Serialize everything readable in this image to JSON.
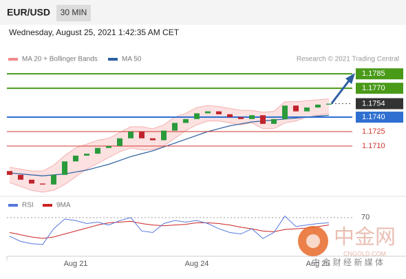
{
  "chart_data": {
    "type": "candlestick",
    "symbol": "EUR/USD",
    "timeframe": "30 MIN",
    "timestamp": "Wednesday, August 25, 2021 1:42:35 AM CET",
    "legend": [
      "MA 20 + Bollinger Bands",
      "MA 50"
    ],
    "legend_colors": [
      "#f08a8a",
      "#2c5fa0"
    ],
    "credit": "Research © 2021 Trading Central",
    "ylim": [
      1.1657,
      1.1793
    ],
    "open": [
      1.1684,
      1.168,
      1.1675,
      1.1671,
      1.167,
      1.168,
      1.1694,
      1.17,
      1.1702,
      1.1708,
      1.171,
      1.1718,
      1.1725,
      1.1718,
      1.1716,
      1.1726,
      1.1734,
      1.1738,
      1.1744,
      1.1746,
      1.1743,
      1.174,
      1.1738,
      1.1742,
      1.1733,
      1.1738,
      1.1752,
      1.1746,
      1.175,
      1.1753
    ],
    "close": [
      1.168,
      1.1675,
      1.1671,
      1.167,
      1.168,
      1.1694,
      1.17,
      1.1702,
      1.1708,
      1.171,
      1.1718,
      1.1725,
      1.1718,
      1.1716,
      1.1726,
      1.1734,
      1.1738,
      1.1744,
      1.1746,
      1.1743,
      1.174,
      1.1738,
      1.1742,
      1.1733,
      1.1738,
      1.1752,
      1.1746,
      1.175,
      1.1753,
      1.1754
    ],
    "ma50": [
      1.1682,
      1.1681,
      1.168,
      1.1679,
      1.168,
      1.1681,
      1.1683,
      1.1685,
      1.1688,
      1.1691,
      1.1695,
      1.1699,
      1.1702,
      1.1705,
      1.1709,
      1.1713,
      1.1717,
      1.1721,
      1.1725,
      1.1728,
      1.1731,
      1.1733,
      1.1735,
      1.1736,
      1.1737,
      1.1738,
      1.1739,
      1.174,
      1.1741,
      1.1742
    ],
    "bb_upper": [
      1.1688,
      1.1686,
      1.1684,
      1.1684,
      1.169,
      1.17,
      1.1708,
      1.1712,
      1.1716,
      1.1718,
      1.1724,
      1.173,
      1.173,
      1.1728,
      1.1732,
      1.174,
      1.1744,
      1.175,
      1.1752,
      1.1751,
      1.1749,
      1.1747,
      1.1747,
      1.1745,
      1.1746,
      1.1756,
      1.1756,
      1.1757,
      1.1758,
      1.1759
    ],
    "bb_lower": [
      1.1672,
      1.1668,
      1.1664,
      1.1662,
      1.1664,
      1.167,
      1.1678,
      1.1686,
      1.1692,
      1.1698,
      1.1704,
      1.1708,
      1.1706,
      1.1706,
      1.171,
      1.1718,
      1.1726,
      1.1732,
      1.1736,
      1.1736,
      1.1734,
      1.1732,
      1.1734,
      1.1728,
      1.1728,
      1.1734,
      1.1736,
      1.174,
      1.1742,
      1.1744
    ],
    "levels": [
      {
        "value": 1.1785,
        "label": "1.1785",
        "color": "#4a9a1a",
        "style": "box"
      },
      {
        "value": 1.177,
        "label": "1.1770",
        "color": "#4a9a1a",
        "style": "box"
      },
      {
        "value": 1.1754,
        "label": "1.1754",
        "color": "#333333",
        "style": "current"
      },
      {
        "value": 1.174,
        "label": "1.1740",
        "color": "#2f6fd0",
        "style": "box"
      },
      {
        "value": 1.1725,
        "label": "1.1725",
        "color": "#d0342c",
        "style": "text"
      },
      {
        "value": 1.171,
        "label": "1.1710",
        "color": "#d0342c",
        "style": "text"
      }
    ],
    "x_labels": [
      {
        "label": "Aug 21",
        "at": 6
      },
      {
        "label": "Aug 24",
        "at": 17
      },
      {
        "label": "Aug 25",
        "at": 28
      }
    ],
    "rsi_legend": [
      "RSI",
      "9MA"
    ],
    "rsi_colors": [
      "#5577dd",
      "#cc2222"
    ],
    "rsi_ylim": [
      20,
      80
    ],
    "rsi_yticks": [
      70
    ],
    "rsi": [
      45,
      38,
      35,
      34,
      55,
      68,
      66,
      62,
      64,
      60,
      66,
      70,
      52,
      50,
      62,
      66,
      64,
      66,
      62,
      55,
      50,
      48,
      55,
      42,
      50,
      72,
      58,
      60,
      62,
      63
    ],
    "rsi_ma": [
      50,
      47,
      44,
      42,
      44,
      48,
      52,
      56,
      60,
      63,
      64,
      65,
      62,
      60,
      59,
      60,
      61,
      63,
      63,
      62,
      60,
      57,
      55,
      52,
      51,
      54,
      55,
      56,
      58,
      60
    ],
    "watermark": [
      "中金网",
      "CNGOLD.COM",
      "中 金 财 经 新 媒 体"
    ]
  }
}
